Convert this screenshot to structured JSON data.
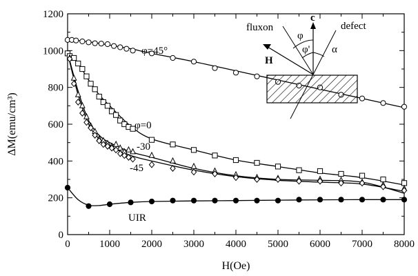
{
  "chart_data": {
    "type": "scatter",
    "xlabel": "H(Oe)",
    "ylabel": "ΔM(emu/cm³)",
    "xlim": [
      0,
      8000
    ],
    "ylim": [
      0,
      1200
    ],
    "xticks": [
      0,
      1000,
      2000,
      3000,
      4000,
      5000,
      6000,
      7000,
      8000
    ],
    "yticks": [
      0,
      200,
      400,
      600,
      800,
      1000,
      1200
    ],
    "grid": false,
    "series": [
      {
        "name": "φ=45°",
        "marker": "circle-open",
        "x": [
          0,
          100,
          200,
          350,
          500,
          650,
          800,
          950,
          1100,
          1250,
          1400,
          1550,
          2000,
          2500,
          3000,
          3500,
          4000,
          4500,
          5000,
          5500,
          6000,
          6500,
          7000,
          7500,
          8000
        ],
        "y": [
          1058,
          1058,
          1055,
          1050,
          1045,
          1040,
          1038,
          1035,
          1025,
          1018,
          1010,
          1000,
          985,
          960,
          940,
          905,
          880,
          860,
          830,
          810,
          800,
          760,
          740,
          715,
          695
        ],
        "curve_x": [
          0,
          500,
          1000,
          1500,
          2000,
          3000,
          4000,
          5000,
          6000,
          7000,
          8000
        ],
        "curve_y": [
          1062,
          1048,
          1030,
          1010,
          985,
          940,
          890,
          840,
          790,
          740,
          690
        ]
      },
      {
        "name": "φ=0",
        "marker": "square-open",
        "x": [
          0,
          50,
          150,
          250,
          350,
          450,
          550,
          650,
          750,
          850,
          950,
          1050,
          1150,
          1250,
          1350,
          1450,
          1550,
          2000,
          2500,
          3000,
          3500,
          4000,
          4500,
          5000,
          5500,
          6000,
          6500,
          7000,
          7500,
          8000
        ],
        "y": [
          985,
          970,
          960,
          930,
          900,
          860,
          820,
          790,
          750,
          720,
          700,
          670,
          650,
          620,
          600,
          585,
          575,
          515,
          490,
          460,
          430,
          405,
          390,
          370,
          350,
          345,
          330,
          320,
          300,
          280
        ],
        "curve_x": [
          0,
          250,
          500,
          750,
          1000,
          1500,
          2000,
          3000,
          4000,
          5000,
          6000,
          7000,
          8000
        ],
        "curve_y": [
          990,
          930,
          840,
          760,
          700,
          590,
          520,
          460,
          405,
          370,
          335,
          310,
          270
        ]
      },
      {
        "name": "-30",
        "marker": "triangle-open",
        "x": [
          50,
          150,
          250,
          350,
          450,
          550,
          650,
          750,
          850,
          950,
          1050,
          1150,
          1250,
          1350,
          1450,
          1550,
          2000,
          2500,
          3000,
          3500,
          4000,
          4500,
          5000,
          5500,
          6000,
          6500,
          7000,
          7500,
          8000
        ],
        "y": [
          960,
          850,
          760,
          700,
          640,
          590,
          560,
          520,
          510,
          495,
          480,
          490,
          470,
          450,
          460,
          450,
          430,
          400,
          370,
          345,
          325,
          310,
          305,
          300,
          300,
          295,
          285,
          270,
          250
        ],
        "curve_x": [
          0,
          250,
          500,
          750,
          1000,
          1500,
          2000,
          3000,
          4000,
          5000,
          6000,
          7000,
          8000
        ],
        "curve_y": [
          990,
          780,
          620,
          540,
          500,
          450,
          420,
          360,
          320,
          300,
          295,
          285,
          225
        ]
      },
      {
        "name": "-45",
        "marker": "diamond-open",
        "x": [
          50,
          150,
          250,
          350,
          450,
          550,
          650,
          750,
          850,
          950,
          1050,
          1150,
          1250,
          1350,
          1450,
          1550,
          2000,
          2500,
          3000,
          3500,
          4000,
          4500,
          5000,
          5500,
          6000,
          6500,
          7000,
          7500,
          8000
        ],
        "y": [
          955,
          820,
          720,
          660,
          610,
          580,
          540,
          510,
          490,
          480,
          470,
          460,
          440,
          430,
          420,
          410,
          380,
          360,
          340,
          330,
          310,
          300,
          300,
          290,
          290,
          280,
          280,
          260,
          240
        ],
        "curve_x": [
          0,
          250,
          500,
          750,
          1000,
          1500,
          2000,
          3000,
          4000,
          5000,
          6000,
          7000,
          8000
        ],
        "curve_y": [
          985,
          760,
          600,
          520,
          480,
          430,
          400,
          350,
          315,
          295,
          285,
          275,
          235
        ]
      },
      {
        "name": "UIR",
        "marker": "circle-filled",
        "x": [
          0,
          500,
          1000,
          1500,
          2000,
          2500,
          3000,
          3500,
          4000,
          4500,
          5000,
          5500,
          6000,
          6500,
          7000,
          7500,
          8000
        ],
        "y": [
          255,
          155,
          165,
          175,
          180,
          185,
          185,
          185,
          185,
          185,
          185,
          190,
          190,
          190,
          190,
          190,
          190
        ],
        "curve_x": [
          0,
          250,
          500,
          750,
          1000,
          1500,
          2000,
          3000,
          4000,
          5000,
          6000,
          7000,
          8000
        ],
        "curve_y": [
          255,
          190,
          160,
          158,
          165,
          175,
          180,
          183,
          185,
          187,
          189,
          190,
          190
        ]
      }
    ],
    "annotations": [
      "φ=45°",
      "φ=0",
      "-30",
      "-45",
      "UIR"
    ],
    "inset": {
      "labels": [
        "fluxon",
        "c",
        "defect",
        "φ",
        "φ'",
        "α",
        "H"
      ]
    }
  }
}
